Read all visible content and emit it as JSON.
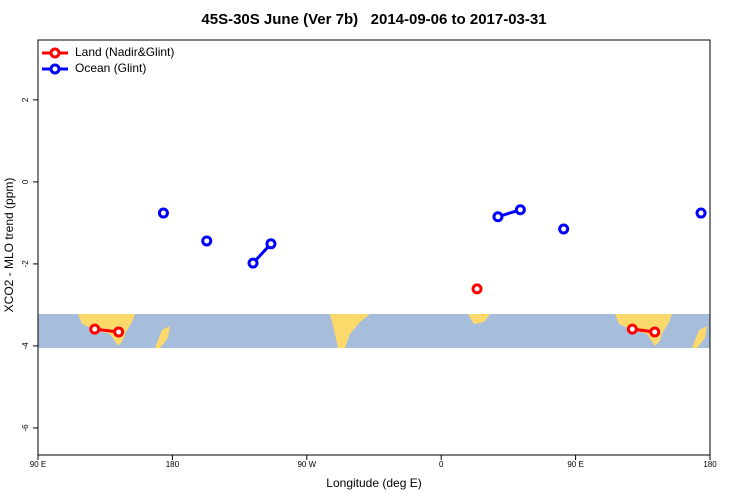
{
  "chart_data": {
    "type": "line",
    "title": "45S-30S June (Ver 7b)   2014-09-06 to 2017-03-31",
    "x_label": "Longitude (deg E)",
    "y_label": "XCO2 - MLO trend (ppm)",
    "xlim": [
      90,
      540
    ],
    "xticks": [
      {
        "value": 90,
        "label": "90 E"
      },
      {
        "value": 180,
        "label": "180"
      },
      {
        "value": 270,
        "label": "90 W"
      },
      {
        "value": 360,
        "label": "0"
      },
      {
        "value": 450,
        "label": "90 E"
      },
      {
        "value": 540,
        "label": "180"
      }
    ],
    "ylim": [
      -6.66,
      3.46
    ],
    "yticks": [
      2,
      0,
      -2,
      -4,
      -6
    ],
    "legend": "top-left",
    "series": [
      {
        "name": "Land (Nadir&Glint)",
        "color": "#ff0000",
        "x": [
          128,
          144,
          null,
          384,
          null,
          488,
          503
        ],
        "values": [
          -3.59,
          -3.66,
          null,
          -2.61,
          null,
          -3.59,
          -3.66
        ]
      },
      {
        "name": "Ocean (Glint)",
        "color": "#0000ff",
        "x": [
          174,
          null,
          203,
          null,
          234,
          246,
          null,
          398,
          413,
          null,
          442,
          null,
          534
        ],
        "values": [
          -0.76,
          null,
          -1.44,
          null,
          -1.98,
          -1.51,
          null,
          -0.85,
          -0.68,
          null,
          -1.15,
          null,
          -0.76
        ]
      }
    ]
  }
}
